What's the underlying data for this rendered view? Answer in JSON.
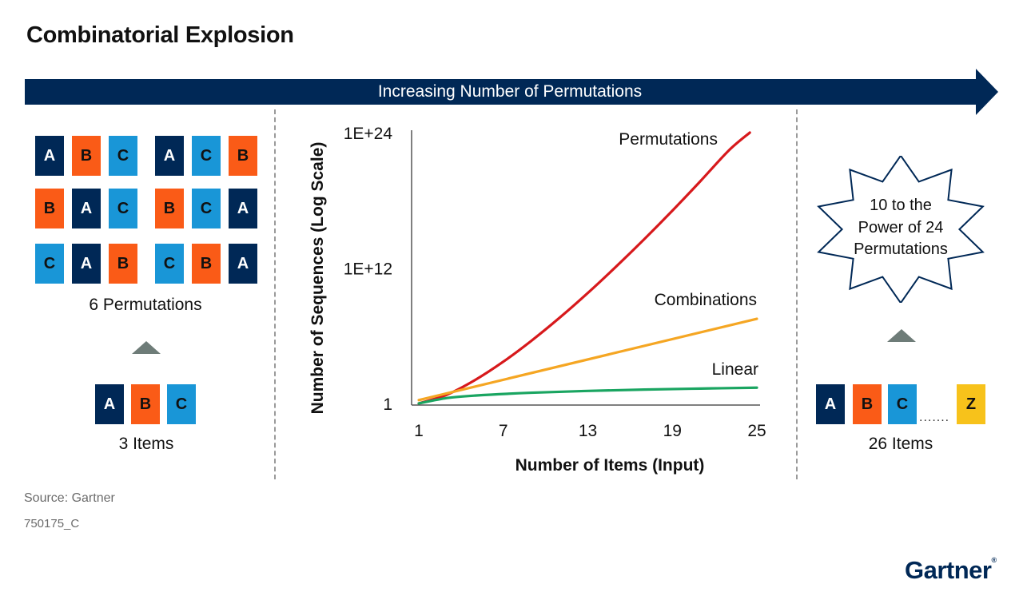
{
  "title": "Combinatorial Explosion",
  "banner": {
    "label": "Increasing Number of Permutations"
  },
  "colors": {
    "navy": "#002856",
    "orange": "#fa5b17",
    "cyan": "#1996d7",
    "yellow": "#f7c21b",
    "triangle": "#6e7c78"
  },
  "left_panel": {
    "permutation_rows": [
      [
        [
          "A",
          "B",
          "C"
        ],
        [
          "A",
          "C",
          "B"
        ]
      ],
      [
        [
          "B",
          "A",
          "C"
        ],
        [
          "B",
          "C",
          "A"
        ]
      ],
      [
        [
          "C",
          "A",
          "B"
        ],
        [
          "C",
          "B",
          "A"
        ]
      ]
    ],
    "permutations_caption": "6 Permutations",
    "items": [
      "A",
      "B",
      "C"
    ],
    "items_caption": "3 Items"
  },
  "right_panel": {
    "starburst_text": "10 to the\nPower of 24\nPermutations",
    "items": [
      "A",
      "B",
      "C",
      "Z"
    ],
    "ellipsis": ".......",
    "items_caption": "26 Items"
  },
  "chart_data": {
    "type": "line",
    "ylabel": "Number of Sequences (Log Scale)",
    "xlabel": "Number of Items (Input)",
    "y_scale": "log10",
    "x_ticks": [
      1,
      7,
      13,
      19,
      25
    ],
    "y_ticks": [
      {
        "value": 1,
        "label": "1"
      },
      {
        "value": 1000000000000.0,
        "label": "1E+12"
      },
      {
        "value": 1e+24,
        "label": "1E+24"
      }
    ],
    "xlim": [
      1,
      25
    ],
    "ylim_log10": [
      0,
      24
    ],
    "series": [
      {
        "name": "Permutations",
        "color": "#d7191c",
        "x": [
          1,
          3,
          5,
          7,
          9,
          11,
          13,
          15,
          17,
          19,
          21,
          23,
          24.5
        ],
        "log10_y": [
          0,
          0.78,
          2.08,
          3.7,
          5.56,
          7.6,
          9.79,
          12.12,
          14.55,
          17.08,
          19.71,
          22.41,
          24
        ]
      },
      {
        "name": "Combinations",
        "color": "#f5a623",
        "x": [
          1,
          25
        ],
        "log10_y": [
          0.3,
          7.5
        ]
      },
      {
        "name": "Linear",
        "color": "#1aa561",
        "x": [
          1,
          3,
          5,
          9,
          13,
          17,
          21,
          25
        ],
        "log10_y": [
          0,
          0.48,
          0.7,
          0.95,
          1.11,
          1.23,
          1.32,
          1.4
        ]
      }
    ]
  },
  "footer": {
    "source": "Source: Gartner",
    "doc_id": "750175_C",
    "logo": "Gartner",
    "logo_mark": "®"
  }
}
